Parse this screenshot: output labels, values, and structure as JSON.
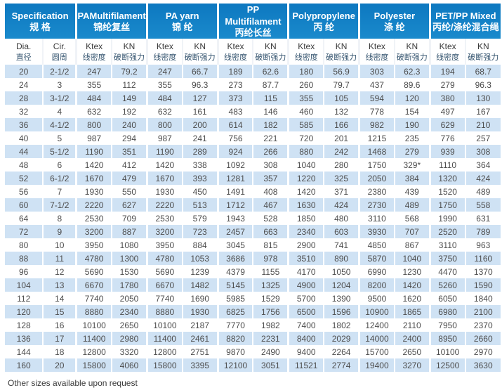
{
  "page": {
    "footer_note": "Other sizes available upon request"
  },
  "colors": {
    "header_blue": "#1081c7",
    "row_alt_blue": "#cfe2f4",
    "data_text": "#4d4d4d"
  },
  "table": {
    "column_groups": [
      {
        "en": "Specification",
        "zh": "规 格"
      },
      {
        "en": "PAMultifilament",
        "zh": "锦纶复丝"
      },
      {
        "en": "PA yarn",
        "zh": "锦 纶"
      },
      {
        "en": "PP Multifilament",
        "zh": "丙纶长丝"
      },
      {
        "en": "Polypropylene",
        "zh": "丙 纶"
      },
      {
        "en": "Polyester",
        "zh": "涤 纶"
      },
      {
        "en": "PET/PP Mixed",
        "zh": "丙纶/涤纶混合绳"
      }
    ],
    "sub_columns": [
      {
        "en": "Dia.",
        "zh": "直径"
      },
      {
        "en": "Cir.",
        "zh": "圆周"
      },
      {
        "en": "Ktex",
        "zh": "线密度"
      },
      {
        "en": "KN",
        "zh": "破断强力"
      },
      {
        "en": "Ktex",
        "zh": "线密度"
      },
      {
        "en": "KN",
        "zh": "破断强力"
      },
      {
        "en": "Ktex",
        "zh": "线密度"
      },
      {
        "en": "KN",
        "zh": "破断强力"
      },
      {
        "en": "Ktex",
        "zh": "线密度"
      },
      {
        "en": "KN",
        "zh": "破断强力"
      },
      {
        "en": "Ktex",
        "zh": "线密度"
      },
      {
        "en": "KN",
        "zh": "破断强力"
      },
      {
        "en": "Ktex",
        "zh": "线密度"
      },
      {
        "en": "KN",
        "zh": "破断强力"
      }
    ],
    "rows": [
      [
        "20",
        "2-1/2",
        "247",
        "79.2",
        "247",
        "66.7",
        "189",
        "62.6",
        "180",
        "56.9",
        "303",
        "62.3",
        "194",
        "68.7"
      ],
      [
        "24",
        "3",
        "355",
        "112",
        "355",
        "96.3",
        "273",
        "87.7",
        "260",
        "79.7",
        "437",
        "89.6",
        "279",
        "96.3"
      ],
      [
        "28",
        "3-1/2",
        "484",
        "149",
        "484",
        "127",
        "373",
        "115",
        "355",
        "105",
        "594",
        "120",
        "380",
        "130"
      ],
      [
        "32",
        "4",
        "632",
        "192",
        "632",
        "161",
        "483",
        "146",
        "460",
        "132",
        "778",
        "154",
        "497",
        "167"
      ],
      [
        "36",
        "4-1/2",
        "800",
        "240",
        "800",
        "200",
        "614",
        "182",
        "585",
        "166",
        "982",
        "190",
        "629",
        "210"
      ],
      [
        "40",
        "5",
        "987",
        "294",
        "987",
        "241",
        "756",
        "221",
        "720",
        "201",
        "1215",
        "235",
        "776",
        "257"
      ],
      [
        "44",
        "5-1/2",
        "1190",
        "351",
        "1190",
        "289",
        "924",
        "266",
        "880",
        "242",
        "1468",
        "279",
        "939",
        "308"
      ],
      [
        "48",
        "6",
        "1420",
        "412",
        "1420",
        "338",
        "1092",
        "308",
        "1040",
        "280",
        "1750",
        "329*",
        "1110",
        "364"
      ],
      [
        "52",
        "6-1/2",
        "1670",
        "479",
        "1670",
        "393",
        "1281",
        "357",
        "1220",
        "325",
        "2050",
        "384",
        "1320",
        "424"
      ],
      [
        "56",
        "7",
        "1930",
        "550",
        "1930",
        "450",
        "1491",
        "408",
        "1420",
        "371",
        "2380",
        "439",
        "1520",
        "489"
      ],
      [
        "60",
        "7-1/2",
        "2220",
        "627",
        "2220",
        "513",
        "1712",
        "467",
        "1630",
        "424",
        "2730",
        "489",
        "1750",
        "558"
      ],
      [
        "64",
        "8",
        "2530",
        "709",
        "2530",
        "579",
        "1943",
        "528",
        "1850",
        "480",
        "3110",
        "568",
        "1990",
        "631"
      ],
      [
        "72",
        "9",
        "3200",
        "887",
        "3200",
        "723",
        "2457",
        "663",
        "2340",
        "603",
        "3930",
        "707",
        "2520",
        "789"
      ],
      [
        "80",
        "10",
        "3950",
        "1080",
        "3950",
        "884",
        "3045",
        "815",
        "2900",
        "741",
        "4850",
        "867",
        "3110",
        "963"
      ],
      [
        "88",
        "11",
        "4780",
        "1300",
        "4780",
        "1053",
        "3686",
        "978",
        "3510",
        "890",
        "5870",
        "1040",
        "3750",
        "1160"
      ],
      [
        "96",
        "12",
        "5690",
        "1530",
        "5690",
        "1239",
        "4379",
        "1155",
        "4170",
        "1050",
        "6990",
        "1230",
        "4470",
        "1370"
      ],
      [
        "104",
        "13",
        "6670",
        "1780",
        "6670",
        "1482",
        "5145",
        "1325",
        "4900",
        "1204",
        "8200",
        "1420",
        "5260",
        "1590"
      ],
      [
        "112",
        "14",
        "7740",
        "2050",
        "7740",
        "1690",
        "5985",
        "1529",
        "5700",
        "1390",
        "9500",
        "1620",
        "6050",
        "1840"
      ],
      [
        "120",
        "15",
        "8880",
        "2340",
        "8880",
        "1930",
        "6825",
        "1756",
        "6500",
        "1596",
        "10900",
        "1865",
        "6980",
        "2100"
      ],
      [
        "128",
        "16",
        "10100",
        "2650",
        "10100",
        "2187",
        "7770",
        "1982",
        "7400",
        "1802",
        "12400",
        "2110",
        "7950",
        "2370"
      ],
      [
        "136",
        "17",
        "11400",
        "2980",
        "11400",
        "2461",
        "8820",
        "2231",
        "8400",
        "2029",
        "14000",
        "2400",
        "8950",
        "2660"
      ],
      [
        "144",
        "18",
        "12800",
        "3320",
        "12800",
        "2751",
        "9870",
        "2490",
        "9400",
        "2264",
        "15700",
        "2650",
        "10100",
        "2970"
      ],
      [
        "160",
        "20",
        "15800",
        "4060",
        "15800",
        "3395",
        "12100",
        "3051",
        "11521",
        "2774",
        "19400",
        "3270",
        "12500",
        "3630"
      ]
    ]
  }
}
